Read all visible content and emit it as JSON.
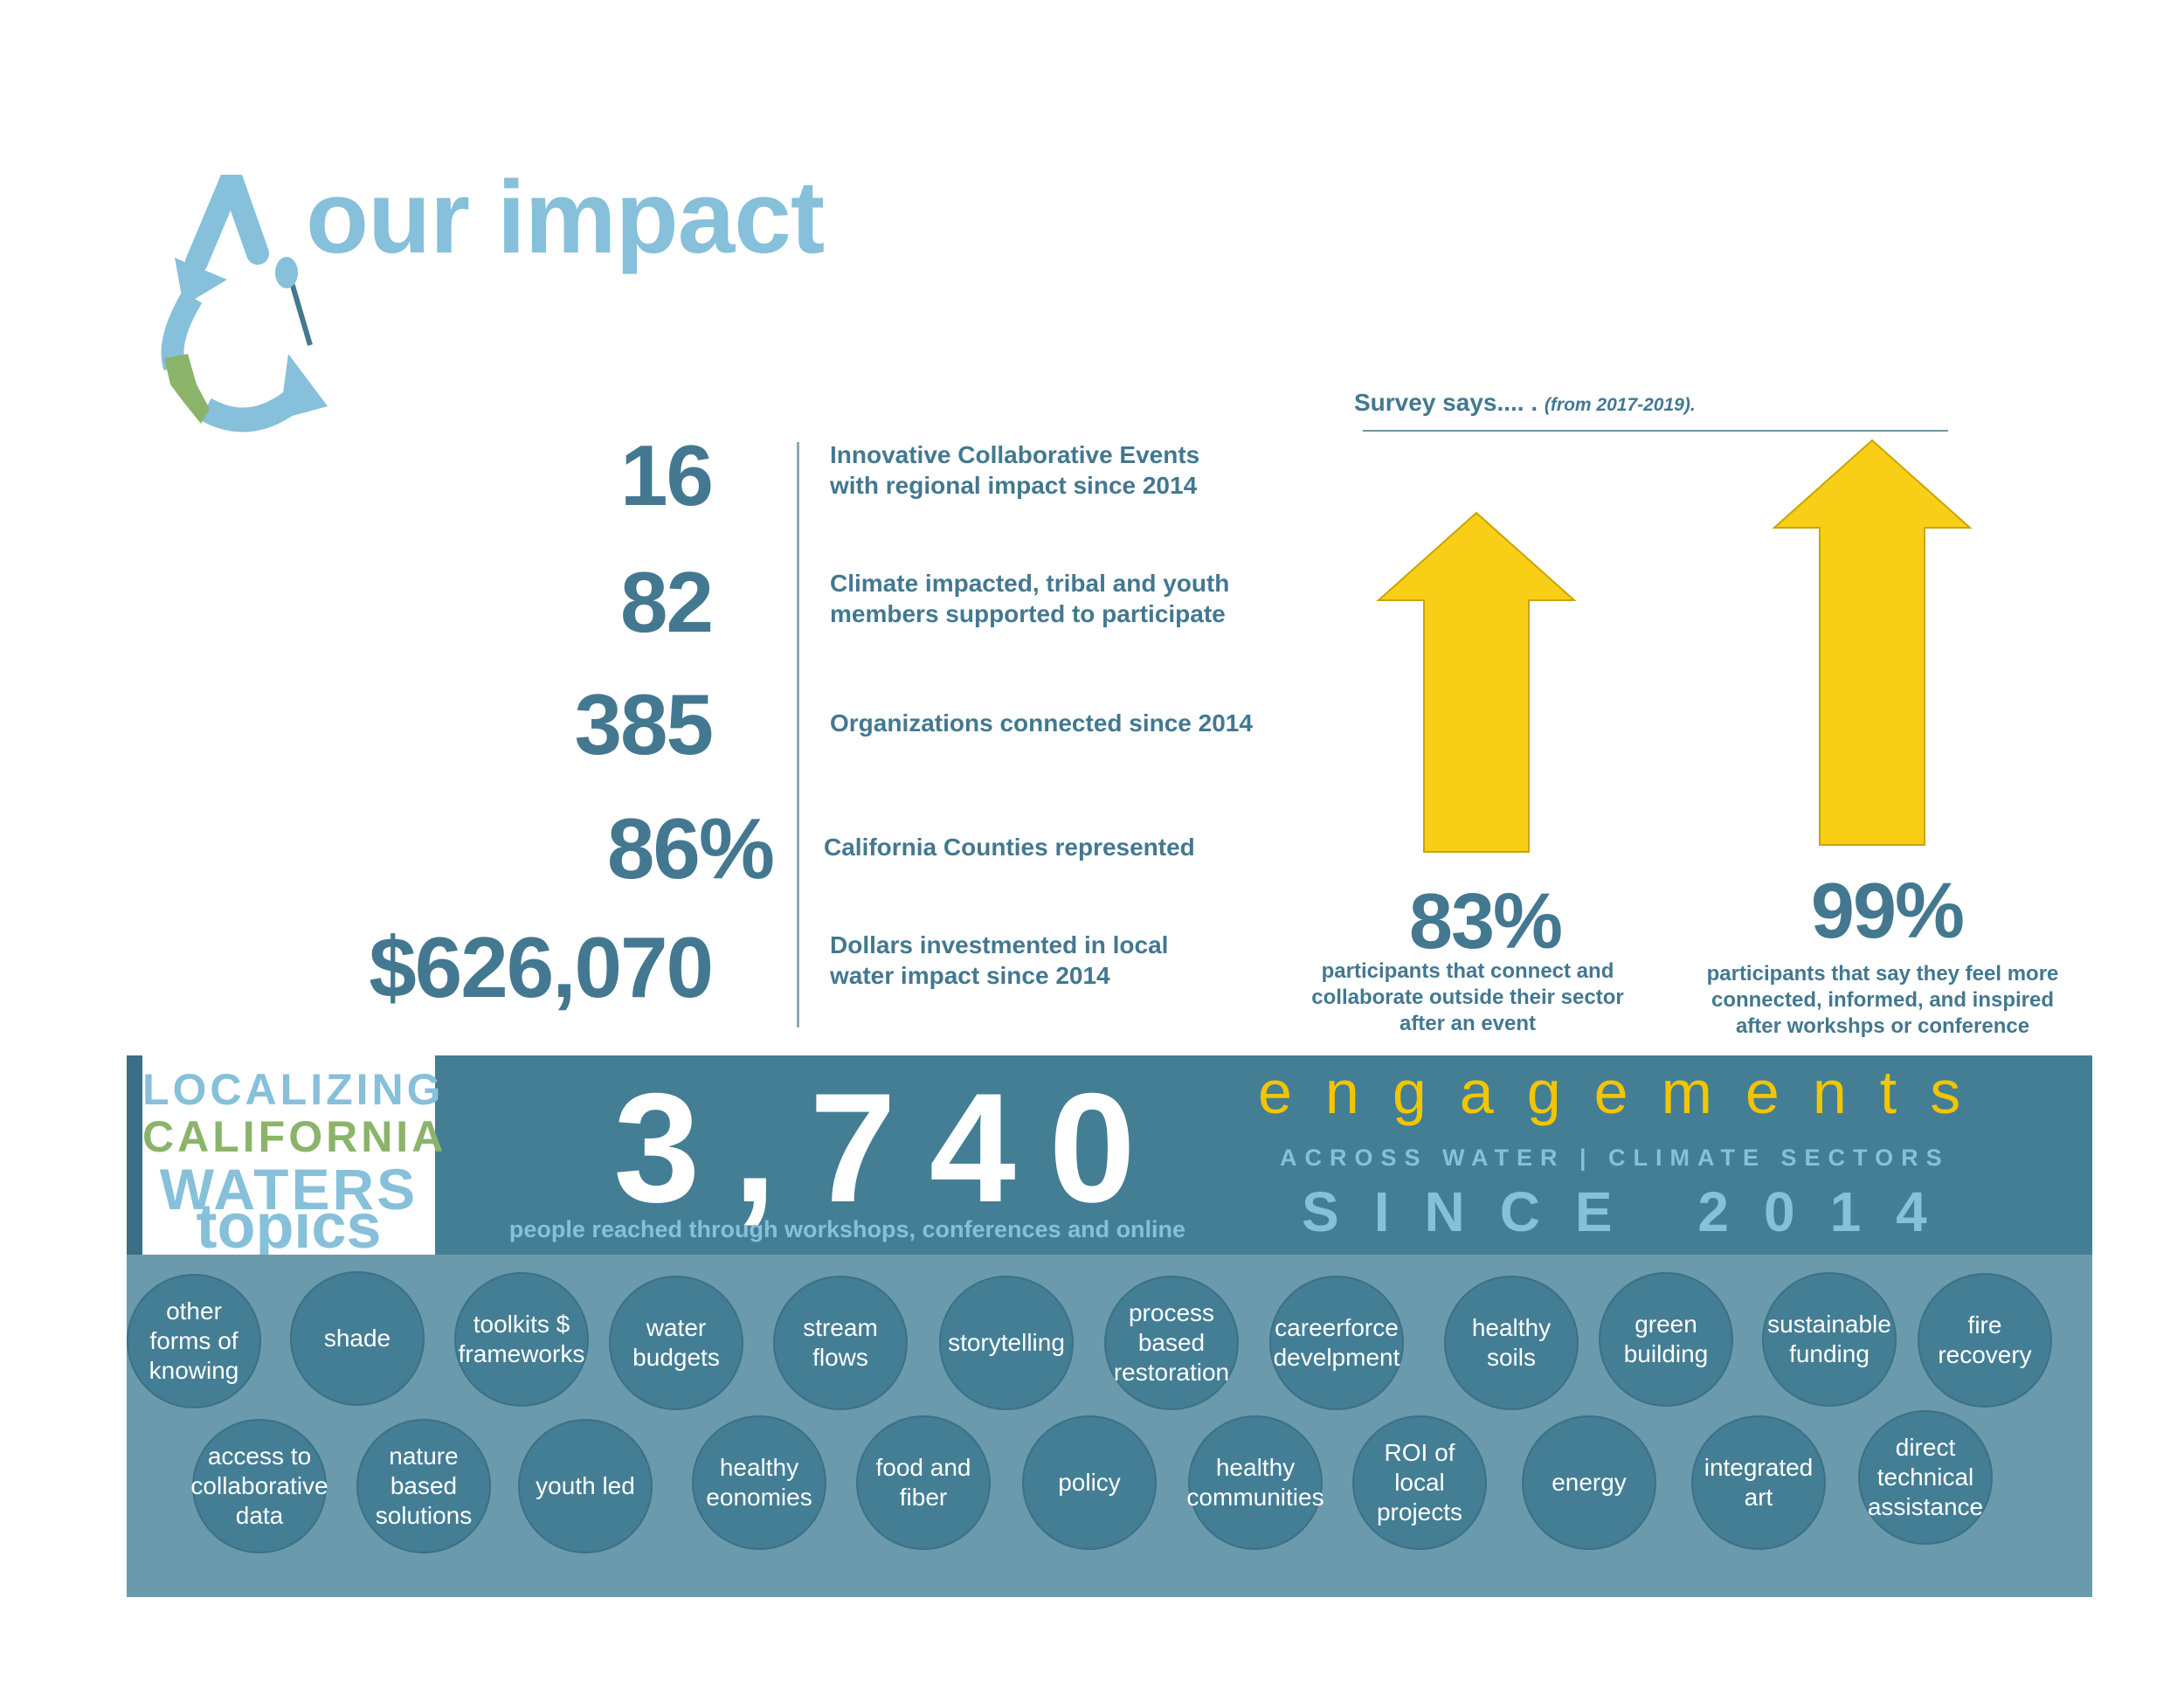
{
  "header": {
    "title": "our impact"
  },
  "stats": [
    {
      "value": "16",
      "description": "Innovative Collaborative Events\nwith regional impact since 2014"
    },
    {
      "value": "82",
      "description": "Climate impacted, tribal and youth\nmembers supported to participate"
    },
    {
      "value": "385",
      "description": "Organizations connected since 2014"
    },
    {
      "value": "86%",
      "description": "California Counties represented"
    },
    {
      "value": "$626,070",
      "description": "Dollars investmented in local\nwater impact since 2014"
    }
  ],
  "survey": {
    "title": "Survey says.... .",
    "period": "(from 2017-2019).",
    "items": [
      {
        "percent": "83%",
        "value": 83,
        "description": "participants that connect and\ncollaborate outside their sector\nafter an event"
      },
      {
        "percent": "99%",
        "value": 99,
        "description": "participants that say they feel more\nconnected, informed, and inspired\nafter workshps or conference"
      }
    ]
  },
  "engagement": {
    "logo_line1": "LOCALIZING",
    "logo_line2": "CALIFORNIA",
    "logo_line3": "WATERS",
    "logo_line4": "topics",
    "count": "3,740",
    "count_caption": "people reached through workshops, conferences and online",
    "label": "engagements",
    "sectors": "ACROSS WATER | CLIMATE SECTORS",
    "since": "SINCE 2014"
  },
  "topics": [
    "other\nforms of\nknowing",
    "shade",
    "toolkits $\nframeworks",
    "water\nbudgets",
    "stream\nflows",
    "storytelling",
    "process\nbased\nrestoration",
    "careerforce\ndevelpment",
    "healthy\nsoils",
    "green\nbuilding",
    "sustainable\nfunding",
    "fire\nrecovery",
    "access to\ncollaborative\ndata",
    "nature\nbased\nsolutions",
    "youth led",
    "healthy\neonomies",
    "food and\nfiber",
    "policy",
    "healthy\ncommunities",
    "ROI of\nlocal\nprojects",
    "energy",
    "integrated\nart",
    "direct\ntechnical\nassistance"
  ],
  "colors": {
    "primary": "#437890",
    "light": "#86c0da",
    "accent": "#f5cf1a",
    "green": "#8bb46a"
  }
}
